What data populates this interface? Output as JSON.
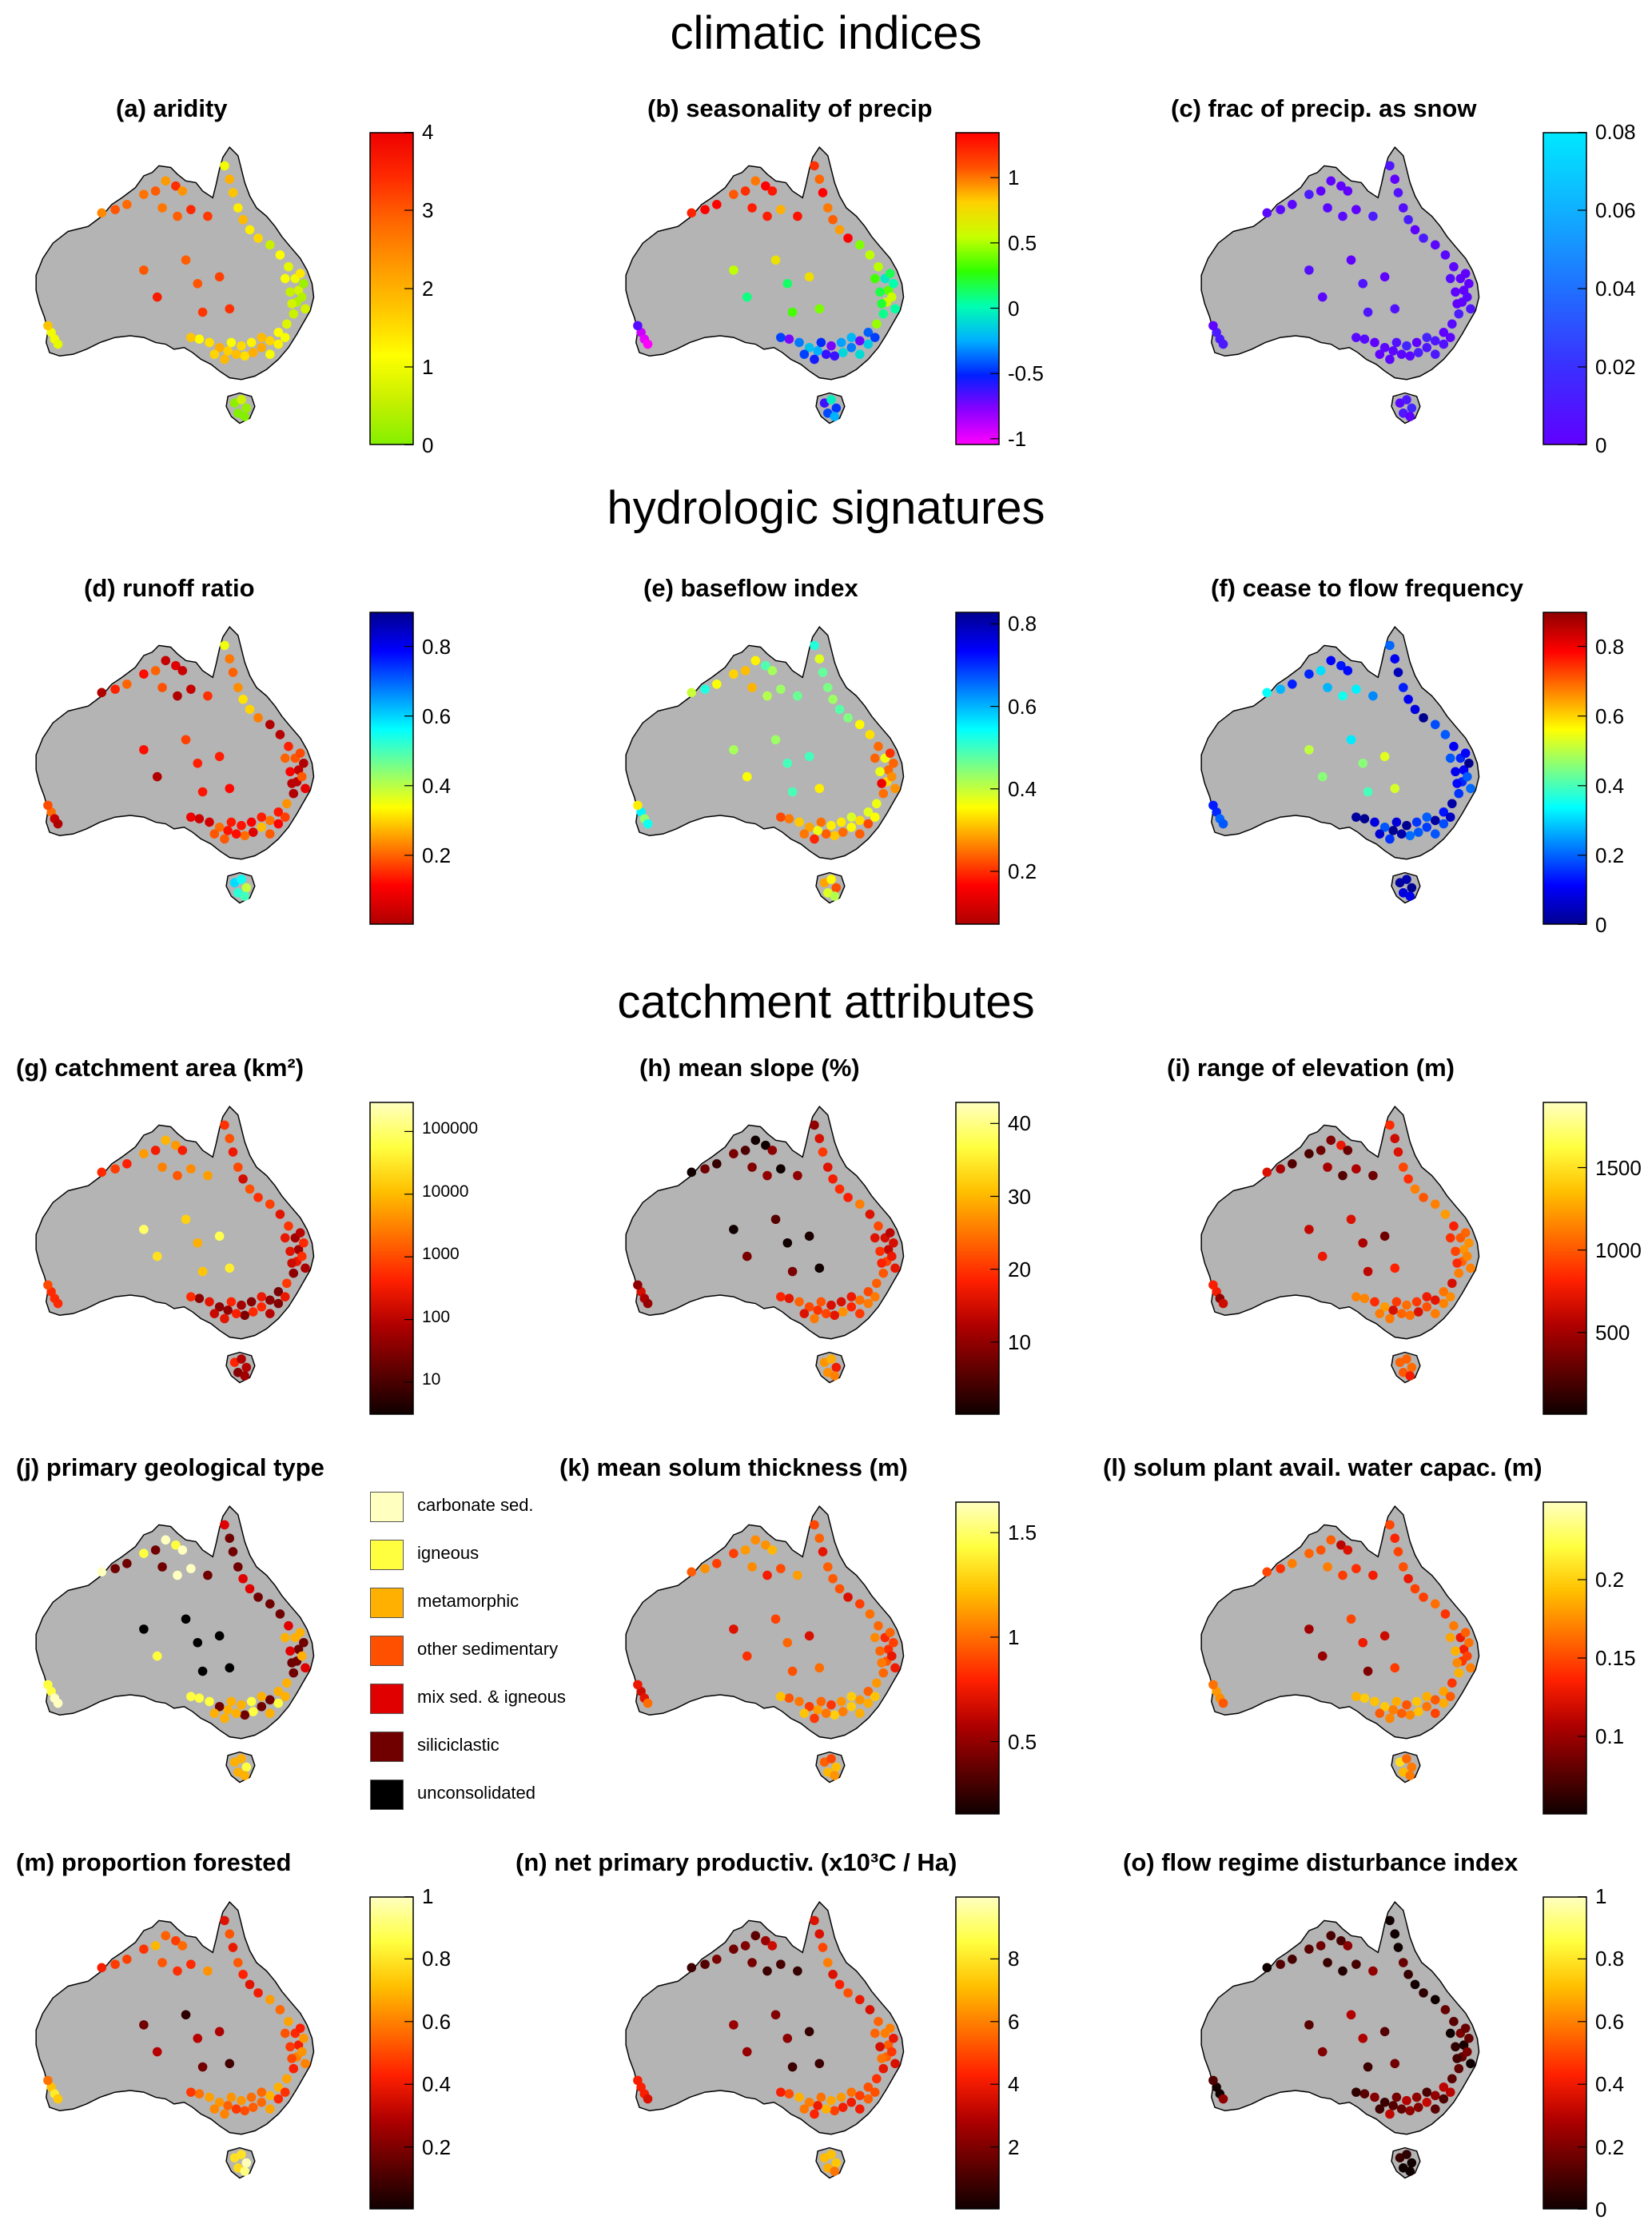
{
  "sections": [
    {
      "id": "climatic",
      "title": "climatic indices"
    },
    {
      "id": "hydrologic",
      "title": "hydrologic signatures"
    },
    {
      "id": "catchment",
      "title": "catchment attributes"
    }
  ],
  "colormaps": {
    "redyellowgreen": [
      "#84f000",
      "#c8f000",
      "#ffff00",
      "#ffc800",
      "#ff9900",
      "#ff6600",
      "#ff2a00",
      "#ee0000"
    ],
    "hsvlike": [
      "#ff00ff",
      "#8a00ff",
      "#0020ff",
      "#00b0ff",
      "#00ffb0",
      "#30ff00",
      "#c8ff00",
      "#ffd000",
      "#ff5000",
      "#ff0000"
    ],
    "cool": [
      "#6000ff",
      "#3a30ff",
      "#2070ff",
      "#10b0ff",
      "#00e8ff"
    ],
    "jetr": [
      "#b00000",
      "#ff0000",
      "#ff8000",
      "#ffff00",
      "#80ff80",
      "#00ffff",
      "#0080ff",
      "#0000ff",
      "#000090"
    ],
    "jet": [
      "#000090",
      "#0000ff",
      "#0080ff",
      "#00ffff",
      "#80ff80",
      "#ffff00",
      "#ff8000",
      "#ff0000",
      "#900000"
    ],
    "hot": [
      "#100000",
      "#600000",
      "#b00000",
      "#ff2000",
      "#ff7000",
      "#ffc000",
      "#ffff40",
      "#ffffc0"
    ]
  },
  "chart_data": [
    {
      "id": "a",
      "type": "scatter",
      "title": "(a) aridity",
      "section": "climatic",
      "colormap": "redyellowgreen",
      "clim": [
        0,
        4
      ],
      "ticks": [
        "4",
        "3",
        "2",
        "1",
        "0"
      ]
    },
    {
      "id": "b",
      "type": "scatter",
      "title": "(b) seasonality of precip",
      "section": "climatic",
      "colormap": "hsvlike",
      "clim": [
        -1.05,
        1.35
      ],
      "ticks": [
        "1",
        "0.5",
        "0",
        "-0.5",
        "-1"
      ]
    },
    {
      "id": "c",
      "type": "scatter",
      "title": "(c) frac of precip. as snow",
      "section": "climatic",
      "colormap": "cool",
      "clim": [
        0,
        0.08
      ],
      "ticks": [
        "0.08",
        "0.06",
        "0.04",
        "0.02",
        "0"
      ]
    },
    {
      "id": "d",
      "type": "scatter",
      "title": "(d) runoff ratio",
      "section": "hydrologic",
      "colormap": "jetr",
      "clim": [
        0,
        0.9
      ],
      "ticks": [
        "0.8",
        "0.6",
        "0.4",
        "0.2"
      ]
    },
    {
      "id": "e",
      "type": "scatter",
      "title": "(e) baseflow index",
      "section": "hydrologic",
      "colormap": "jetr",
      "clim": [
        0.07,
        0.83
      ],
      "ticks": [
        "0.8",
        "0.6",
        "0.4",
        "0.2"
      ]
    },
    {
      "id": "f",
      "type": "scatter",
      "title": "(f) cease to flow frequency",
      "section": "hydrologic",
      "colormap": "jet",
      "clim": [
        0,
        0.9
      ],
      "ticks": [
        "0.8",
        "0.6",
        "0.4",
        "0.2",
        "0"
      ]
    },
    {
      "id": "g",
      "type": "scatter",
      "title": "(g) catchment area (km²)",
      "section": "catchment",
      "colormap": "hot",
      "clim": [
        3,
        300000
      ],
      "scale": "log",
      "ticks": [
        "100000",
        "10000",
        "1000",
        "100",
        "10"
      ]
    },
    {
      "id": "h",
      "type": "scatter",
      "title": "(h) mean slope (%)",
      "section": "catchment",
      "colormap": "hot",
      "clim": [
        0,
        43
      ],
      "ticks": [
        "40",
        "30",
        "20",
        "10"
      ]
    },
    {
      "id": "i",
      "type": "scatter",
      "title": "(i) range of elevation (m)",
      "section": "catchment",
      "colormap": "hot",
      "clim": [
        0,
        1900
      ],
      "ticks": [
        "1500",
        "1000",
        "500"
      ]
    },
    {
      "id": "j",
      "type": "scatter",
      "title": "(j) primary geological type",
      "section": "catchment",
      "categorical": true,
      "legend": [
        {
          "label": "carbonate sed.",
          "color": "#ffffc0"
        },
        {
          "label": "igneous",
          "color": "#ffff40"
        },
        {
          "label": "metamorphic",
          "color": "#ffb000"
        },
        {
          "label": "other sedimentary",
          "color": "#ff5000"
        },
        {
          "label": "mix sed. & igneous",
          "color": "#e00000"
        },
        {
          "label": "siliciclastic",
          "color": "#700000"
        },
        {
          "label": "unconsolidated",
          "color": "#000000"
        }
      ]
    },
    {
      "id": "k",
      "type": "scatter",
      "title": "(k) mean solum thickness (m)",
      "section": "catchment",
      "colormap": "hot",
      "clim": [
        0.15,
        1.65
      ],
      "ticks": [
        "1.5",
        "1",
        "0.5"
      ]
    },
    {
      "id": "l",
      "type": "scatter",
      "title": "(l) solum plant avail. water capac. (m)",
      "section": "catchment",
      "colormap": "hot",
      "clim": [
        0.05,
        0.25
      ],
      "ticks": [
        "0.2",
        "0.15",
        "0.1"
      ]
    },
    {
      "id": "m",
      "type": "scatter",
      "title": "(m) proportion forested",
      "section": "catchment",
      "colormap": "hot",
      "clim": [
        0,
        1
      ],
      "ticks": [
        "1",
        "0.8",
        "0.6",
        "0.4",
        "0.2"
      ]
    },
    {
      "id": "n",
      "type": "scatter",
      "title": "(n) net primary productiv. (x10³C / Ha)",
      "section": "catchment",
      "colormap": "hot",
      "clim": [
        0,
        10
      ],
      "ticks": [
        "8",
        "6",
        "4",
        "2"
      ]
    },
    {
      "id": "o",
      "type": "scatter",
      "title": "(o) flow regime disturbance index",
      "section": "catchment",
      "colormap": "hot",
      "clim": [
        0,
        1
      ],
      "ticks": [
        "1",
        "0.8",
        "0.6",
        "0.4",
        "0.2",
        "0"
      ]
    }
  ]
}
